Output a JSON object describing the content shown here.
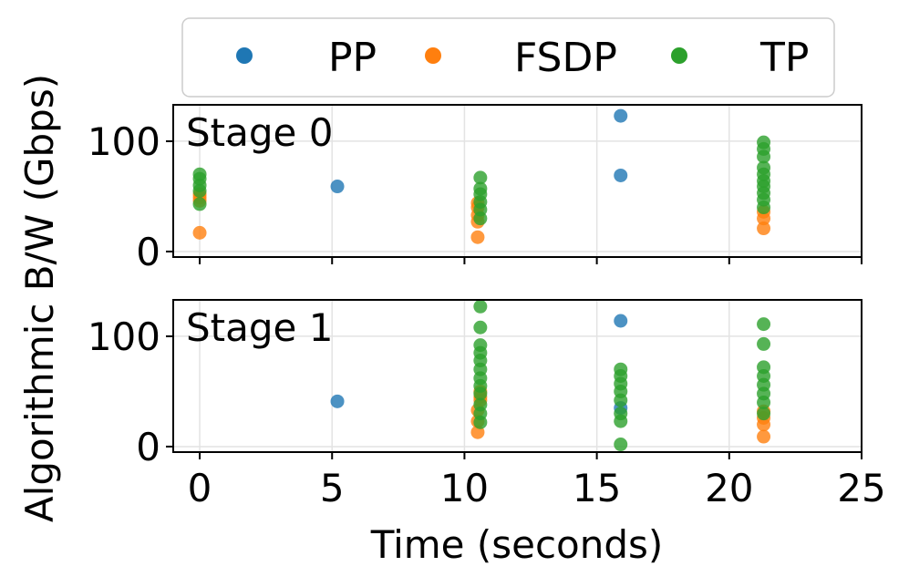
{
  "chart_data": {
    "type": "scatter",
    "xlabel": "Time (seconds)",
    "ylabel": "Algorithmic B/W (Gbps)",
    "xlim": [
      -1,
      25
    ],
    "ylim": [
      -5,
      133
    ],
    "xticks": [
      0,
      5,
      10,
      15,
      20,
      25
    ],
    "yticks": [
      0,
      100
    ],
    "grid": true,
    "legend": {
      "placement": "top",
      "entries": [
        {
          "name": "PP",
          "color": "#1f77b4"
        },
        {
          "name": "FSDP",
          "color": "#ff7f0e"
        },
        {
          "name": "TP",
          "color": "#2ca02c"
        }
      ]
    },
    "panels": [
      {
        "title": "Stage 0",
        "series": [
          {
            "name": "PP",
            "color": "#1f77b4",
            "points": [
              [
                5.2,
                59
              ],
              [
                15.9,
                123
              ],
              [
                15.9,
                69
              ]
            ]
          },
          {
            "name": "FSDP",
            "color": "#ff7f0e",
            "points": [
              [
                0,
                17
              ],
              [
                0,
                46
              ],
              [
                0,
                49
              ],
              [
                0,
                52
              ],
              [
                10.5,
                13
              ],
              [
                10.5,
                27
              ],
              [
                10.5,
                33
              ],
              [
                10.5,
                40
              ],
              [
                10.5,
                44
              ],
              [
                21.3,
                21
              ],
              [
                21.3,
                30
              ],
              [
                21.3,
                36
              ]
            ]
          },
          {
            "name": "TP",
            "color": "#2ca02c",
            "points": [
              [
                0,
                43
              ],
              [
                0,
                55
              ],
              [
                0,
                60
              ],
              [
                0,
                66
              ],
              [
                0,
                70
              ],
              [
                10.6,
                30
              ],
              [
                10.6,
                38
              ],
              [
                10.6,
                45
              ],
              [
                10.6,
                52
              ],
              [
                10.6,
                57
              ],
              [
                10.6,
                67
              ],
              [
                21.3,
                40
              ],
              [
                21.3,
                47
              ],
              [
                21.3,
                53
              ],
              [
                21.3,
                59
              ],
              [
                21.3,
                64
              ],
              [
                21.3,
                70
              ],
              [
                21.3,
                76
              ],
              [
                21.3,
                86
              ],
              [
                21.3,
                93
              ],
              [
                21.3,
                99
              ]
            ]
          }
        ]
      },
      {
        "title": "Stage 1",
        "series": [
          {
            "name": "PP",
            "color": "#1f77b4",
            "points": [
              [
                5.2,
                41
              ],
              [
                15.9,
                114
              ],
              [
                15.9,
                35
              ]
            ]
          },
          {
            "name": "FSDP",
            "color": "#ff7f0e",
            "points": [
              [
                10.5,
                13
              ],
              [
                10.5,
                23
              ],
              [
                10.5,
                33
              ],
              [
                10.6,
                42
              ],
              [
                10.6,
                45
              ],
              [
                10.6,
                50
              ],
              [
                21.3,
                9
              ],
              [
                21.3,
                20
              ],
              [
                21.3,
                26
              ],
              [
                21.3,
                32
              ]
            ]
          },
          {
            "name": "TP",
            "color": "#2ca02c",
            "points": [
              [
                10.6,
                127
              ],
              [
                10.6,
                108
              ],
              [
                10.6,
                92
              ],
              [
                10.6,
                85
              ],
              [
                10.6,
                78
              ],
              [
                10.6,
                70
              ],
              [
                10.6,
                62
              ],
              [
                10.6,
                55
              ],
              [
                10.6,
                48
              ],
              [
                10.6,
                38
              ],
              [
                10.6,
                30
              ],
              [
                10.6,
                22
              ],
              [
                15.9,
                2
              ],
              [
                15.9,
                23
              ],
              [
                15.9,
                30
              ],
              [
                15.9,
                42
              ],
              [
                15.9,
                50
              ],
              [
                15.9,
                57
              ],
              [
                15.9,
                64
              ],
              [
                15.9,
                70
              ],
              [
                21.3,
                111
              ],
              [
                21.3,
                93
              ],
              [
                21.3,
                72
              ],
              [
                21.3,
                64
              ],
              [
                21.3,
                56
              ],
              [
                21.3,
                48
              ],
              [
                21.3,
                40
              ],
              [
                21.3,
                30
              ]
            ]
          }
        ]
      }
    ]
  }
}
